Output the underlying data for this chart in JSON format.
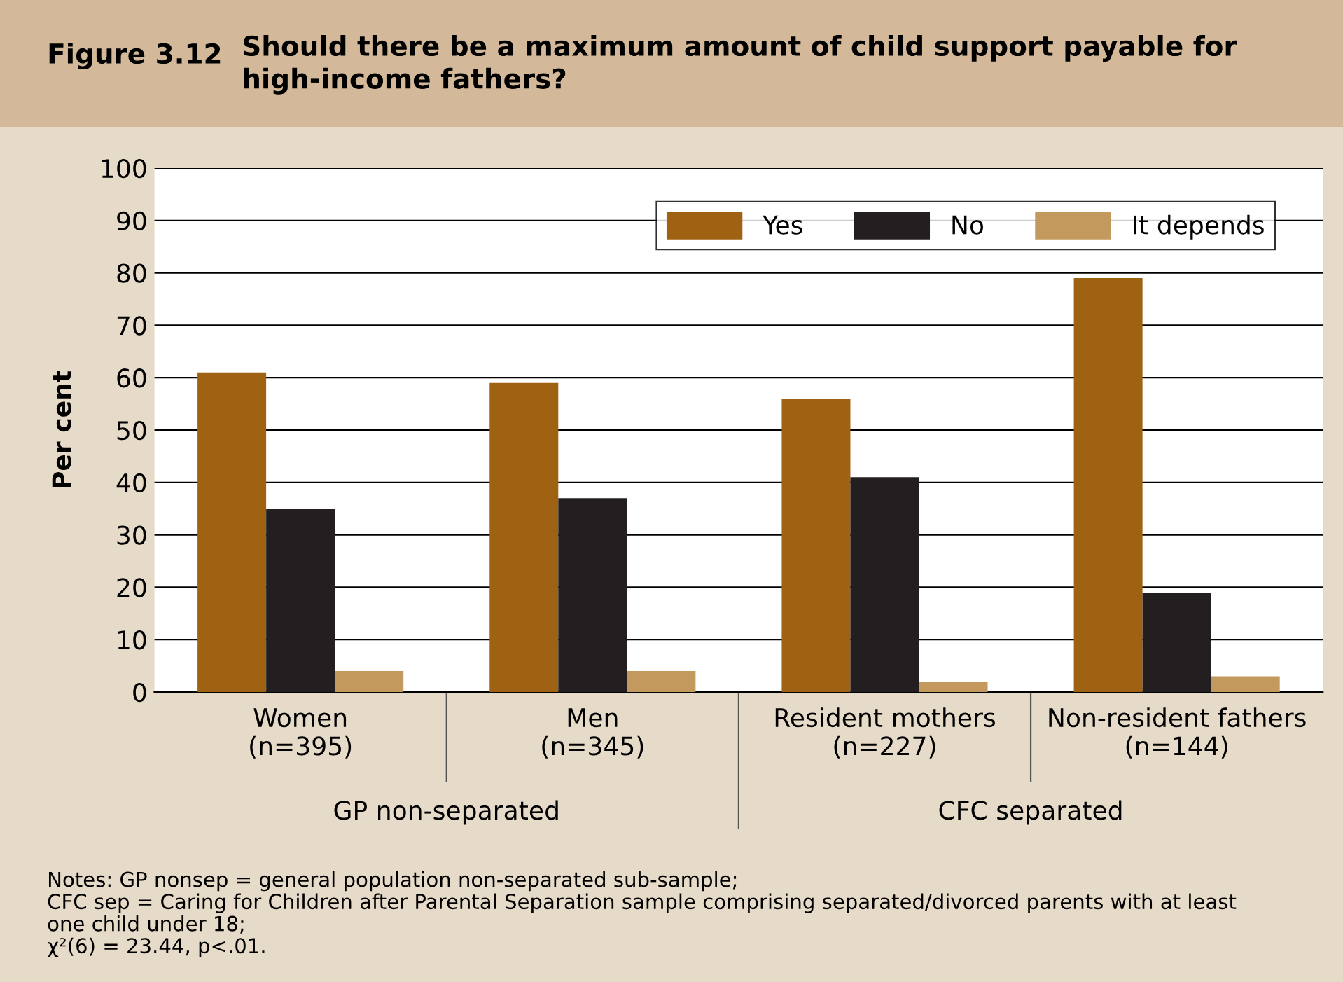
{
  "chart_data": {
    "type": "bar",
    "title": "Figure 3.12",
    "subtitle": "Should there be a maximum amount of child support payable for\nhigh-income fathers?",
    "ylabel": "Per cent",
    "categories": [
      "Women\n(n=395)",
      "Men\n(n=345)",
      "Resident mothers\n(n=227)",
      "Non-resident fathers\n(n=144)"
    ],
    "series": [
      {
        "name": "Yes",
        "color": "#9e6212",
        "values": [
          61,
          59,
          56,
          79
        ]
      },
      {
        "name": "No",
        "color": "#231f20",
        "values": [
          35,
          37,
          41,
          19
        ]
      },
      {
        "name": "It depends",
        "color": "#c4995e",
        "values": [
          4,
          4,
          2,
          3
        ]
      }
    ],
    "ylim": [
      0,
      100
    ],
    "yticks": [
      0,
      10,
      20,
      30,
      40,
      50,
      60,
      70,
      80,
      90,
      100
    ],
    "grid": "y",
    "legend": "top right",
    "annotations": [
      "GP non-separated",
      "CFC separated",
      "Notes: GP nonsep = general population non-separated sub-sample;\nCFC sep = Caring for Children after Parental Separation sample comprising separated/divorced parents with at least\none child under 18;\nχ²(6) = 23.44, p<.01."
    ]
  }
}
